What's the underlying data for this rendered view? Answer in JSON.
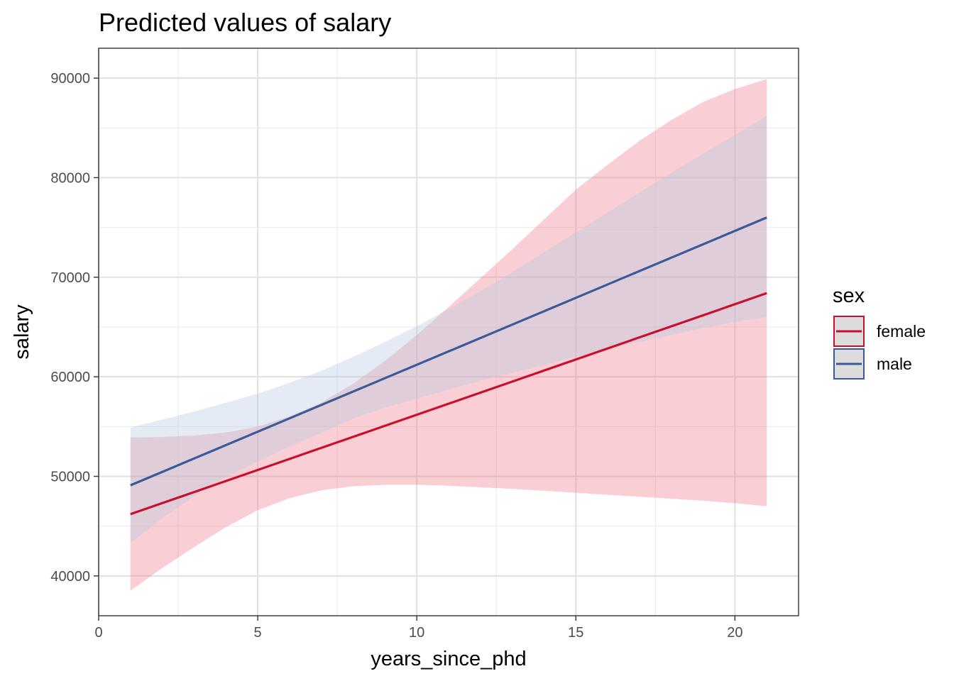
{
  "chart_data": {
    "type": "line",
    "title": "Predicted values of salary",
    "xlabel": "years_since_phd",
    "ylabel": "salary",
    "xlim": [
      0,
      22
    ],
    "ylim": [
      36000,
      93000
    ],
    "x_ticks": [
      0,
      5,
      10,
      15,
      20
    ],
    "x_tick_labels": [
      "0",
      "5",
      "10",
      "15",
      "20"
    ],
    "y_ticks": [
      40000,
      50000,
      60000,
      70000,
      80000,
      90000
    ],
    "y_tick_labels": [
      "40000",
      "50000",
      "60000",
      "70000",
      "80000",
      "90000"
    ],
    "grid": true,
    "legend": {
      "title": "sex",
      "position": "right"
    },
    "series": [
      {
        "name": "female",
        "color": "#c8102e",
        "band_color": "#f08090",
        "x": [
          1,
          21
        ],
        "y": [
          46200,
          68400
        ],
        "ci_x": [
          1,
          2,
          3,
          4,
          5,
          6,
          7,
          8,
          9,
          10,
          11,
          12,
          13,
          14,
          15,
          16,
          17,
          18,
          19,
          20,
          21
        ],
        "ci_low": [
          38500,
          40800,
          42900,
          44900,
          46600,
          47800,
          48600,
          49000,
          49150,
          49150,
          49050,
          48900,
          48750,
          48550,
          48350,
          48150,
          47950,
          47750,
          47550,
          47300,
          47000
        ],
        "ci_high": [
          53900,
          53950,
          54100,
          54400,
          55000,
          56000,
          57400,
          59300,
          61600,
          64200,
          67000,
          69900,
          72800,
          75800,
          78800,
          81300,
          83700,
          85800,
          87600,
          88900,
          89900
        ]
      },
      {
        "name": "male",
        "color": "#3a5a98",
        "band_color": "#b8cbe3",
        "x": [
          1,
          21
        ],
        "y": [
          49100,
          76000
        ],
        "ci_x": [
          1,
          2,
          3,
          4,
          5,
          6,
          7,
          8,
          9,
          10,
          11,
          12,
          13,
          14,
          15,
          16,
          17,
          18,
          19,
          20,
          21
        ],
        "ci_low": [
          43300,
          45800,
          48000,
          49900,
          51500,
          53000,
          54400,
          55800,
          56900,
          57800,
          58700,
          59600,
          60400,
          61200,
          62000,
          62800,
          63500,
          64200,
          64900,
          65500,
          66000
        ],
        "ci_high": [
          54900,
          55700,
          56500,
          57400,
          58300,
          59400,
          60600,
          62000,
          63500,
          65100,
          66800,
          68600,
          70500,
          72500,
          74500,
          76500,
          78500,
          80500,
          82400,
          84300,
          86200
        ]
      }
    ]
  }
}
